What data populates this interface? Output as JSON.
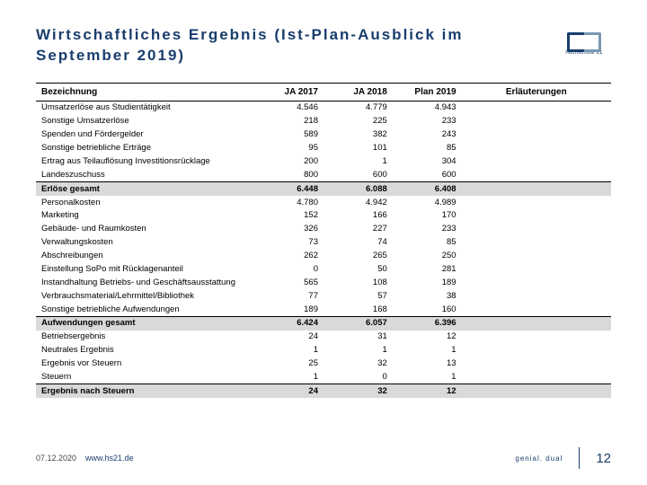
{
  "title_line1": "Wirtschaftliches Ergebnis (Ist-Plan-Ausblick im",
  "title_line2": "September 2019)",
  "logo_text": "hochschule 21",
  "table": {
    "headers": {
      "label": "Bezeichnung",
      "c1": "JA 2017",
      "c2": "JA 2018",
      "c3": "Plan 2019",
      "erlaut": "Erläuterungen"
    },
    "rows": [
      {
        "label": "Umsatzerlöse aus Studientätigkeit",
        "c1": "4.546",
        "c2": "4.779",
        "c3": "4.943",
        "type": "normal"
      },
      {
        "label": "Sonstige Umsatzerlöse",
        "c1": "218",
        "c2": "225",
        "c3": "233",
        "type": "normal"
      },
      {
        "label": "Spenden und Fördergelder",
        "c1": "589",
        "c2": "382",
        "c3": "243",
        "type": "normal"
      },
      {
        "label": "Sonstige betriebliche Erträge",
        "c1": "95",
        "c2": "101",
        "c3": "85",
        "type": "normal"
      },
      {
        "label": "Ertrag aus Teilauflösung Investitionsrücklage",
        "c1": "200",
        "c2": "1",
        "c3": "304",
        "type": "normal"
      },
      {
        "label": "Landeszuschuss",
        "c1": "800",
        "c2": "600",
        "c3": "600",
        "type": "section-divider"
      },
      {
        "label": "Erlöse gesamt",
        "c1": "6.448",
        "c2": "6.088",
        "c3": "6.408",
        "type": "subtotal"
      },
      {
        "label": "Personalkosten",
        "c1": "4.780",
        "c2": "4.942",
        "c3": "4.989",
        "type": "normal"
      },
      {
        "label": "Marketing",
        "c1": "152",
        "c2": "166",
        "c3": "170",
        "type": "normal"
      },
      {
        "label": "Gebäude- und Raumkosten",
        "c1": "326",
        "c2": "227",
        "c3": "233",
        "type": "normal"
      },
      {
        "label": "Verwaltungskosten",
        "c1": "73",
        "c2": "74",
        "c3": "85",
        "type": "normal"
      },
      {
        "label": "Abschreibungen",
        "c1": "262",
        "c2": "265",
        "c3": "250",
        "type": "normal"
      },
      {
        "label": "Einstellung SoPo mit Rücklagenanteil",
        "c1": "0",
        "c2": "50",
        "c3": "281",
        "type": "normal"
      },
      {
        "label": "Instandhaltung Betriebs- und Geschäftsausstattung",
        "c1": "565",
        "c2": "108",
        "c3": "189",
        "type": "normal"
      },
      {
        "label": "Verbrauchsmaterial/Lehrmittel/Bibliothek",
        "c1": "77",
        "c2": "57",
        "c3": "38",
        "type": "normal"
      },
      {
        "label": "Sonstige betriebliche Aufwendungen",
        "c1": "189",
        "c2": "168",
        "c3": "160",
        "type": "section-divider"
      },
      {
        "label": "Aufwendungen gesamt",
        "c1": "6.424",
        "c2": "6.057",
        "c3": "6.396",
        "type": "subtotal"
      },
      {
        "label": "Betriebsergebnis",
        "c1": "24",
        "c2": "31",
        "c3": "12",
        "type": "normal"
      },
      {
        "label": "Neutrales Ergebnis",
        "c1": "1",
        "c2": "1",
        "c3": "1",
        "type": "normal"
      },
      {
        "label": "Ergebnis vor Steuern",
        "c1": "25",
        "c2": "32",
        "c3": "13",
        "type": "normal"
      },
      {
        "label": "Steuern",
        "c1": "1",
        "c2": "0",
        "c3": "1",
        "type": "section-divider"
      },
      {
        "label": "Ergebnis nach Steuern",
        "c1": "24",
        "c2": "32",
        "c3": "12",
        "type": "subtotal"
      }
    ]
  },
  "footer": {
    "date": "07.12.2020",
    "url": "www.hs21.de",
    "tag": "genial. dual",
    "pagenum": "12"
  }
}
